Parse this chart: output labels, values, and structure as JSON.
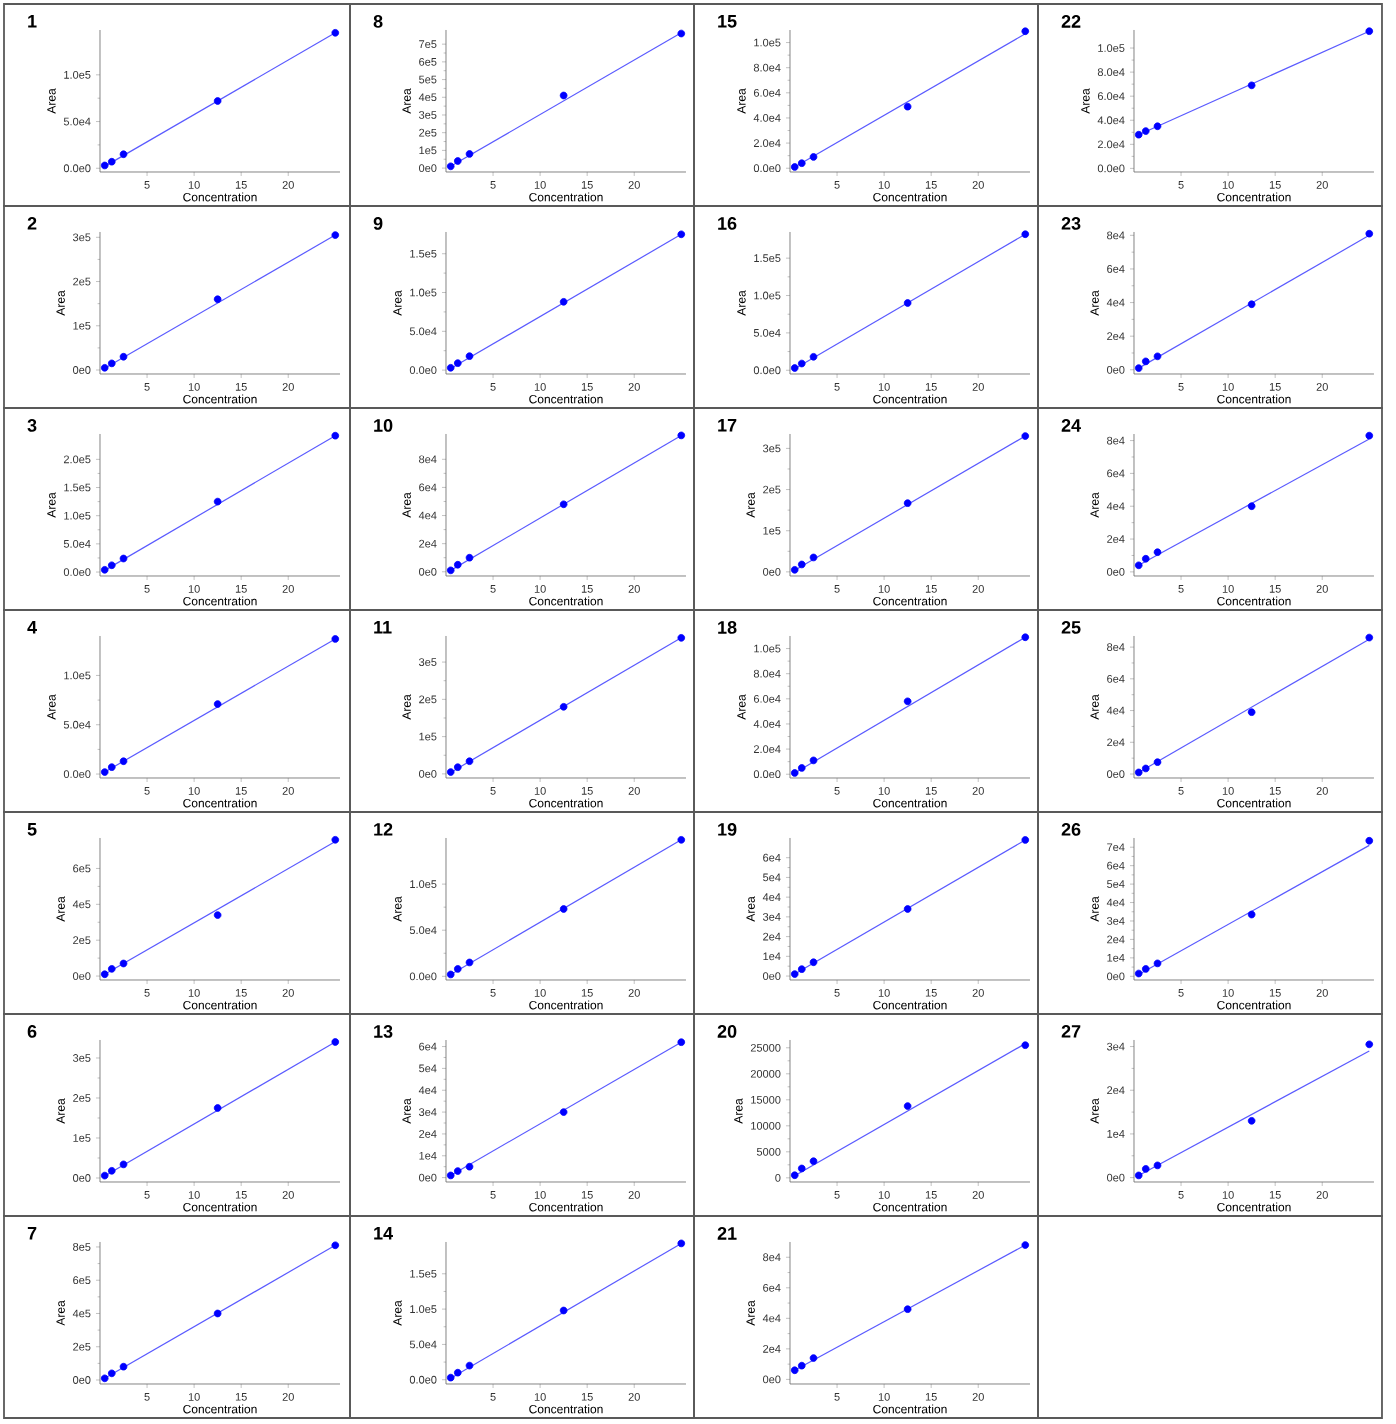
{
  "chart_data": [
    {
      "type": "scatter",
      "title": "1",
      "xlabel": "Concentration",
      "ylabel": "Area",
      "xlim": [
        0,
        25.5
      ],
      "xticks": [
        5,
        10,
        15,
        20
      ],
      "ylim": [
        -4000,
        148000
      ],
      "yticks": [
        {
          "value": 0,
          "label": "0.0e0"
        },
        {
          "value": 50000,
          "label": "5.0e4"
        },
        {
          "value": 100000,
          "label": "1.0e5"
        }
      ],
      "marker": "circle",
      "series": [
        {
          "color": "#0000ff",
          "x": [
            0.5,
            1.25,
            2.5,
            12.5,
            25
          ],
          "values": [
            3000,
            7000,
            15000,
            72000,
            145000
          ]
        },
        {
          "type": "line",
          "marker": "none",
          "color": "#5a5aff",
          "x": [
            0.5,
            25
          ],
          "values": [
            2000,
            145000
          ]
        }
      ]
    },
    {
      "type": "scatter",
      "title": "2",
      "xlabel": "Concentration",
      "ylabel": "Area",
      "xlim": [
        0,
        25.5
      ],
      "xticks": [
        5,
        10,
        15,
        20
      ],
      "ylim": [
        -9000,
        312000
      ],
      "yticks": [
        {
          "value": 0,
          "label": "0e0"
        },
        {
          "value": 100000,
          "label": "1e5"
        },
        {
          "value": 200000,
          "label": "2e5"
        },
        {
          "value": 300000,
          "label": "3e5"
        }
      ],
      "marker": "circle",
      "series": [
        {
          "color": "#0000ff",
          "x": [
            0.5,
            1.25,
            2.5,
            12.5,
            25
          ],
          "values": [
            5000,
            15000,
            30000,
            160000,
            305000
          ]
        },
        {
          "type": "line",
          "marker": "none",
          "color": "#5a5aff",
          "x": [
            0.5,
            25
          ],
          "values": [
            4000,
            305000
          ]
        }
      ]
    },
    {
      "type": "scatter",
      "title": "3",
      "xlabel": "Concentration",
      "ylabel": "Area",
      "xlim": [
        0,
        25.5
      ],
      "xticks": [
        5,
        10,
        15,
        20
      ],
      "ylim": [
        -7000,
        245000
      ],
      "yticks": [
        {
          "value": 0,
          "label": "0.0e0"
        },
        {
          "value": 50000,
          "label": "5.0e4"
        },
        {
          "value": 100000,
          "label": "1.0e5"
        },
        {
          "value": 150000,
          "label": "1.5e5"
        },
        {
          "value": 200000,
          "label": "2.0e5"
        }
      ],
      "marker": "circle",
      "series": [
        {
          "color": "#0000ff",
          "x": [
            0.5,
            1.25,
            2.5,
            12.5,
            25
          ],
          "values": [
            4000,
            12000,
            24000,
            125000,
            242000
          ]
        },
        {
          "type": "line",
          "marker": "none",
          "color": "#5a5aff",
          "x": [
            0.5,
            25
          ],
          "values": [
            3000,
            242000
          ]
        }
      ]
    },
    {
      "type": "scatter",
      "title": "4",
      "xlabel": "Concentration",
      "ylabel": "Area",
      "xlim": [
        0,
        25.5
      ],
      "xticks": [
        5,
        10,
        15,
        20
      ],
      "ylim": [
        -4000,
        140000
      ],
      "yticks": [
        {
          "value": 0,
          "label": "0.0e0"
        },
        {
          "value": 50000,
          "label": "5.0e4"
        },
        {
          "value": 100000,
          "label": "1.0e5"
        }
      ],
      "marker": "circle",
      "series": [
        {
          "color": "#0000ff",
          "x": [
            0.5,
            1.25,
            2.5,
            12.5,
            25
          ],
          "values": [
            2000,
            7000,
            13000,
            71000,
            137000
          ]
        },
        {
          "type": "line",
          "marker": "none",
          "color": "#5a5aff",
          "x": [
            0.5,
            25
          ],
          "values": [
            2000,
            137000
          ]
        }
      ]
    },
    {
      "type": "scatter",
      "title": "5",
      "xlabel": "Concentration",
      "ylabel": "Area",
      "xlim": [
        0,
        25.5
      ],
      "xticks": [
        5,
        10,
        15,
        20
      ],
      "ylim": [
        -22000,
        770000
      ],
      "yticks": [
        {
          "value": 0,
          "label": "0e0"
        },
        {
          "value": 200000,
          "label": "2e5"
        },
        {
          "value": 400000,
          "label": "4e5"
        },
        {
          "value": 600000,
          "label": "6e5"
        }
      ],
      "marker": "circle",
      "series": [
        {
          "color": "#0000ff",
          "x": [
            0.5,
            1.25,
            2.5,
            12.5,
            25
          ],
          "values": [
            10000,
            40000,
            70000,
            340000,
            760000
          ]
        },
        {
          "type": "line",
          "marker": "none",
          "color": "#5a5aff",
          "x": [
            0.5,
            25
          ],
          "values": [
            10000,
            750000
          ]
        }
      ]
    },
    {
      "type": "scatter",
      "title": "6",
      "xlabel": "Concentration",
      "ylabel": "Area",
      "xlim": [
        0,
        25.5
      ],
      "xticks": [
        5,
        10,
        15,
        20
      ],
      "ylim": [
        -10000,
        345000
      ],
      "yticks": [
        {
          "value": 0,
          "label": "0e0"
        },
        {
          "value": 100000,
          "label": "1e5"
        },
        {
          "value": 200000,
          "label": "2e5"
        },
        {
          "value": 300000,
          "label": "3e5"
        }
      ],
      "marker": "circle",
      "series": [
        {
          "color": "#0000ff",
          "x": [
            0.5,
            1.25,
            2.5,
            12.5,
            25
          ],
          "values": [
            6000,
            18000,
            34000,
            175000,
            340000
          ]
        },
        {
          "type": "line",
          "marker": "none",
          "color": "#5a5aff",
          "x": [
            0.5,
            25
          ],
          "values": [
            5000,
            340000
          ]
        }
      ]
    },
    {
      "type": "scatter",
      "title": "7",
      "xlabel": "Concentration",
      "ylabel": "Area",
      "xlim": [
        0,
        25.5
      ],
      "xticks": [
        5,
        10,
        15,
        20
      ],
      "ylim": [
        -24000,
        830000
      ],
      "yticks": [
        {
          "value": 0,
          "label": "0e0"
        },
        {
          "value": 200000,
          "label": "2e5"
        },
        {
          "value": 400000,
          "label": "4e5"
        },
        {
          "value": 600000,
          "label": "6e5"
        },
        {
          "value": 800000,
          "label": "8e5"
        }
      ],
      "marker": "circle",
      "series": [
        {
          "color": "#0000ff",
          "x": [
            0.5,
            1.25,
            2.5,
            12.5,
            25
          ],
          "values": [
            10000,
            40000,
            80000,
            400000,
            810000
          ]
        },
        {
          "type": "line",
          "marker": "none",
          "color": "#5a5aff",
          "x": [
            0.5,
            25
          ],
          "values": [
            10000,
            810000
          ]
        }
      ]
    },
    {
      "type": "scatter",
      "title": "8",
      "xlabel": "Concentration",
      "ylabel": "Area",
      "xlim": [
        0,
        25.5
      ],
      "xticks": [
        5,
        10,
        15,
        20
      ],
      "ylim": [
        -22000,
        780000
      ],
      "yticks": [
        {
          "value": 0,
          "label": "0e0"
        },
        {
          "value": 100000,
          "label": "1e5"
        },
        {
          "value": 200000,
          "label": "2e5"
        },
        {
          "value": 300000,
          "label": "3e5"
        },
        {
          "value": 400000,
          "label": "4e5"
        },
        {
          "value": 500000,
          "label": "5e5"
        },
        {
          "value": 600000,
          "label": "6e5"
        },
        {
          "value": 700000,
          "label": "7e5"
        }
      ],
      "marker": "circle",
      "series": [
        {
          "color": "#0000ff",
          "x": [
            0.5,
            1.25,
            2.5,
            12.5,
            25
          ],
          "values": [
            10000,
            40000,
            80000,
            410000,
            760000
          ]
        },
        {
          "type": "line",
          "marker": "none",
          "color": "#5a5aff",
          "x": [
            0.5,
            25
          ],
          "values": [
            10000,
            765000
          ]
        }
      ]
    },
    {
      "type": "scatter",
      "title": "9",
      "xlabel": "Concentration",
      "ylabel": "Area",
      "xlim": [
        0,
        25.5
      ],
      "xticks": [
        5,
        10,
        15,
        20
      ],
      "ylim": [
        -5000,
        178000
      ],
      "yticks": [
        {
          "value": 0,
          "label": "0.0e0"
        },
        {
          "value": 50000,
          "label": "5.0e4"
        },
        {
          "value": 100000,
          "label": "1.0e5"
        },
        {
          "value": 150000,
          "label": "1.5e5"
        }
      ],
      "marker": "circle",
      "series": [
        {
          "color": "#0000ff",
          "x": [
            0.5,
            1.25,
            2.5,
            12.5,
            25
          ],
          "values": [
            3000,
            9000,
            18000,
            88000,
            175000
          ]
        },
        {
          "type": "line",
          "marker": "none",
          "color": "#5a5aff",
          "x": [
            0.5,
            25
          ],
          "values": [
            2000,
            175000
          ]
        }
      ]
    },
    {
      "type": "scatter",
      "title": "10",
      "xlabel": "Concentration",
      "ylabel": "Area",
      "xlim": [
        0,
        25.5
      ],
      "xticks": [
        5,
        10,
        15,
        20
      ],
      "ylim": [
        -3000,
        98000
      ],
      "yticks": [
        {
          "value": 0,
          "label": "0e0"
        },
        {
          "value": 20000,
          "label": "2e4"
        },
        {
          "value": 40000,
          "label": "4e4"
        },
        {
          "value": 60000,
          "label": "6e4"
        },
        {
          "value": 80000,
          "label": "8e4"
        }
      ],
      "marker": "circle",
      "series": [
        {
          "color": "#0000ff",
          "x": [
            0.5,
            1.25,
            2.5,
            12.5,
            25
          ],
          "values": [
            1000,
            5000,
            10000,
            48000,
            97000
          ]
        },
        {
          "type": "line",
          "marker": "none",
          "color": "#5a5aff",
          "x": [
            0.5,
            25
          ],
          "values": [
            1000,
            97000
          ]
        }
      ]
    },
    {
      "type": "scatter",
      "title": "11",
      "xlabel": "Concentration",
      "ylabel": "Area",
      "xlim": [
        0,
        25.5
      ],
      "xticks": [
        5,
        10,
        15,
        20
      ],
      "ylim": [
        -11000,
        370000
      ],
      "yticks": [
        {
          "value": 0,
          "label": "0e0"
        },
        {
          "value": 100000,
          "label": "1e5"
        },
        {
          "value": 200000,
          "label": "2e5"
        },
        {
          "value": 300000,
          "label": "3e5"
        }
      ],
      "marker": "circle",
      "series": [
        {
          "color": "#0000ff",
          "x": [
            0.5,
            1.25,
            2.5,
            12.5,
            25
          ],
          "values": [
            5000,
            18000,
            34000,
            180000,
            365000
          ]
        },
        {
          "type": "line",
          "marker": "none",
          "color": "#5a5aff",
          "x": [
            0.5,
            25
          ],
          "values": [
            4000,
            365000
          ]
        }
      ]
    },
    {
      "type": "scatter",
      "title": "12",
      "xlabel": "Concentration",
      "ylabel": "Area",
      "xlim": [
        0,
        25.5
      ],
      "xticks": [
        5,
        10,
        15,
        20
      ],
      "ylim": [
        -4000,
        150000
      ],
      "yticks": [
        {
          "value": 0,
          "label": "0.0e0"
        },
        {
          "value": 50000,
          "label": "5.0e4"
        },
        {
          "value": 100000,
          "label": "1.0e5"
        }
      ],
      "marker": "circle",
      "series": [
        {
          "color": "#0000ff",
          "x": [
            0.5,
            1.25,
            2.5,
            12.5,
            25
          ],
          "values": [
            2000,
            8000,
            15000,
            73000,
            148000
          ]
        },
        {
          "type": "line",
          "marker": "none",
          "color": "#5a5aff",
          "x": [
            0.5,
            25
          ],
          "values": [
            2000,
            148000
          ]
        }
      ]
    },
    {
      "type": "scatter",
      "title": "13",
      "xlabel": "Concentration",
      "ylabel": "Area",
      "xlim": [
        0,
        25.5
      ],
      "xticks": [
        5,
        10,
        15,
        20
      ],
      "ylim": [
        -2000,
        63000
      ],
      "yticks": [
        {
          "value": 0,
          "label": "0e0"
        },
        {
          "value": 10000,
          "label": "1e4"
        },
        {
          "value": 20000,
          "label": "2e4"
        },
        {
          "value": 30000,
          "label": "3e4"
        },
        {
          "value": 40000,
          "label": "4e4"
        },
        {
          "value": 50000,
          "label": "5e4"
        },
        {
          "value": 60000,
          "label": "6e4"
        }
      ],
      "marker": "circle",
      "series": [
        {
          "color": "#0000ff",
          "x": [
            0.5,
            1.25,
            2.5,
            12.5,
            25
          ],
          "values": [
            1000,
            3000,
            5000,
            30000,
            62000
          ]
        },
        {
          "type": "line",
          "marker": "none",
          "color": "#5a5aff",
          "x": [
            0.5,
            25
          ],
          "values": [
            1000,
            62000
          ]
        }
      ]
    },
    {
      "type": "scatter",
      "title": "14",
      "xlabel": "Concentration",
      "ylabel": "Area",
      "xlim": [
        0,
        25.5
      ],
      "xticks": [
        5,
        10,
        15,
        20
      ],
      "ylim": [
        -6000,
        195000
      ],
      "yticks": [
        {
          "value": 0,
          "label": "0.0e0"
        },
        {
          "value": 50000,
          "label": "5.0e4"
        },
        {
          "value": 100000,
          "label": "1.0e5"
        },
        {
          "value": 150000,
          "label": "1.5e5"
        }
      ],
      "marker": "circle",
      "series": [
        {
          "color": "#0000ff",
          "x": [
            0.5,
            1.25,
            2.5,
            12.5,
            25
          ],
          "values": [
            3000,
            10000,
            20000,
            98000,
            193000
          ]
        },
        {
          "type": "line",
          "marker": "none",
          "color": "#5a5aff",
          "x": [
            0.5,
            25
          ],
          "values": [
            2000,
            193000
          ]
        }
      ]
    },
    {
      "type": "scatter",
      "title": "15",
      "xlabel": "Concentration",
      "ylabel": "Area",
      "xlim": [
        0,
        25.5
      ],
      "xticks": [
        5,
        10,
        15,
        20
      ],
      "ylim": [
        -3000,
        110000
      ],
      "yticks": [
        {
          "value": 0,
          "label": "0.0e0"
        },
        {
          "value": 20000,
          "label": "2.0e4"
        },
        {
          "value": 40000,
          "label": "4.0e4"
        },
        {
          "value": 60000,
          "label": "6.0e4"
        },
        {
          "value": 80000,
          "label": "8.0e4"
        },
        {
          "value": 100000,
          "label": "1.0e5"
        }
      ],
      "marker": "circle",
      "series": [
        {
          "color": "#0000ff",
          "x": [
            0.5,
            1.25,
            2.5,
            12.5,
            25
          ],
          "values": [
            1000,
            4000,
            9000,
            49000,
            109000
          ]
        },
        {
          "type": "line",
          "marker": "none",
          "color": "#5a5aff",
          "x": [
            0.5,
            25
          ],
          "values": [
            1000,
            107000
          ]
        }
      ]
    },
    {
      "type": "scatter",
      "title": "16",
      "xlabel": "Concentration",
      "ylabel": "Area",
      "xlim": [
        0,
        25.5
      ],
      "xticks": [
        5,
        10,
        15,
        20
      ],
      "ylim": [
        -5000,
        185000
      ],
      "yticks": [
        {
          "value": 0,
          "label": "0.0e0"
        },
        {
          "value": 50000,
          "label": "5.0e4"
        },
        {
          "value": 100000,
          "label": "1.0e5"
        },
        {
          "value": 150000,
          "label": "1.5e5"
        }
      ],
      "marker": "circle",
      "series": [
        {
          "color": "#0000ff",
          "x": [
            0.5,
            1.25,
            2.5,
            12.5,
            25
          ],
          "values": [
            3000,
            9000,
            18000,
            90000,
            182000
          ]
        },
        {
          "type": "line",
          "marker": "none",
          "color": "#5a5aff",
          "x": [
            0.5,
            25
          ],
          "values": [
            2000,
            182000
          ]
        }
      ]
    },
    {
      "type": "scatter",
      "title": "17",
      "xlabel": "Concentration",
      "ylabel": "Area",
      "xlim": [
        0,
        25.5
      ],
      "xticks": [
        5,
        10,
        15,
        20
      ],
      "ylim": [
        -10000,
        335000
      ],
      "yticks": [
        {
          "value": 0,
          "label": "0e0"
        },
        {
          "value": 100000,
          "label": "1e5"
        },
        {
          "value": 200000,
          "label": "2e5"
        },
        {
          "value": 300000,
          "label": "3e5"
        }
      ],
      "marker": "circle",
      "series": [
        {
          "color": "#0000ff",
          "x": [
            0.5,
            1.25,
            2.5,
            12.5,
            25
          ],
          "values": [
            5000,
            18000,
            35000,
            167000,
            330000
          ]
        },
        {
          "type": "line",
          "marker": "none",
          "color": "#5a5aff",
          "x": [
            0.5,
            25
          ],
          "values": [
            4000,
            330000
          ]
        }
      ]
    },
    {
      "type": "scatter",
      "title": "18",
      "xlabel": "Concentration",
      "ylabel": "Area",
      "xlim": [
        0,
        25.5
      ],
      "xticks": [
        5,
        10,
        15,
        20
      ],
      "ylim": [
        -3000,
        110000
      ],
      "yticks": [
        {
          "value": 0,
          "label": "0.0e0"
        },
        {
          "value": 20000,
          "label": "2.0e4"
        },
        {
          "value": 40000,
          "label": "4.0e4"
        },
        {
          "value": 60000,
          "label": "6.0e4"
        },
        {
          "value": 80000,
          "label": "8.0e4"
        },
        {
          "value": 100000,
          "label": "1.0e5"
        }
      ],
      "marker": "circle",
      "series": [
        {
          "color": "#0000ff",
          "x": [
            0.5,
            1.25,
            2.5,
            12.5,
            25
          ],
          "values": [
            1000,
            5000,
            11000,
            58000,
            109000
          ]
        },
        {
          "type": "line",
          "marker": "none",
          "color": "#5a5aff",
          "x": [
            0.5,
            25
          ],
          "values": [
            1000,
            109000
          ]
        }
      ]
    },
    {
      "type": "scatter",
      "title": "19",
      "xlabel": "Concentration",
      "ylabel": "Area",
      "xlim": [
        0,
        25.5
      ],
      "xticks": [
        5,
        10,
        15,
        20
      ],
      "ylim": [
        -2000,
        70000
      ],
      "yticks": [
        {
          "value": 0,
          "label": "0e0"
        },
        {
          "value": 10000,
          "label": "1e4"
        },
        {
          "value": 20000,
          "label": "2e4"
        },
        {
          "value": 30000,
          "label": "3e4"
        },
        {
          "value": 40000,
          "label": "4e4"
        },
        {
          "value": 50000,
          "label": "5e4"
        },
        {
          "value": 60000,
          "label": "6e4"
        }
      ],
      "marker": "circle",
      "series": [
        {
          "color": "#0000ff",
          "x": [
            0.5,
            1.25,
            2.5,
            12.5,
            25
          ],
          "values": [
            1000,
            3500,
            7000,
            34000,
            69000
          ]
        },
        {
          "type": "line",
          "marker": "none",
          "color": "#5a5aff",
          "x": [
            0.5,
            25
          ],
          "values": [
            1000,
            69000
          ]
        }
      ]
    },
    {
      "type": "scatter",
      "title": "20",
      "xlabel": "Concentration",
      "ylabel": "Area",
      "xlim": [
        0,
        25.5
      ],
      "xticks": [
        5,
        10,
        15,
        20
      ],
      "ylim": [
        -800,
        26500
      ],
      "yticks": [
        0,
        5000,
        10000,
        15000,
        20000,
        25000
      ],
      "marker": "circle",
      "series": [
        {
          "color": "#0000ff",
          "x": [
            0.5,
            1.25,
            2.5,
            12.5,
            25
          ],
          "values": [
            500,
            1800,
            3200,
            13800,
            25500
          ]
        },
        {
          "type": "line",
          "marker": "none",
          "color": "#5a5aff",
          "x": [
            0.5,
            25
          ],
          "values": [
            400,
            25800
          ]
        }
      ]
    },
    {
      "type": "scatter",
      "title": "21",
      "xlabel": "Concentration",
      "ylabel": "Area",
      "xlim": [
        0,
        25.5
      ],
      "xticks": [
        5,
        10,
        15,
        20
      ],
      "ylim": [
        -3000,
        90000
      ],
      "yticks": [
        {
          "value": 0,
          "label": "0e0"
        },
        {
          "value": 20000,
          "label": "2e4"
        },
        {
          "value": 40000,
          "label": "4e4"
        },
        {
          "value": 60000,
          "label": "6e4"
        },
        {
          "value": 80000,
          "label": "8e4"
        }
      ],
      "marker": "circle",
      "series": [
        {
          "color": "#0000ff",
          "x": [
            0.5,
            1.25,
            2.5,
            12.5,
            25
          ],
          "values": [
            6000,
            9000,
            14000,
            46000,
            88000
          ]
        },
        {
          "type": "line",
          "marker": "none",
          "color": "#5a5aff",
          "x": [
            0.5,
            25
          ],
          "values": [
            6000,
            88000
          ]
        }
      ]
    },
    {
      "type": "scatter",
      "title": "22",
      "xlabel": "Concentration",
      "ylabel": "Area",
      "xlim": [
        0,
        25.5
      ],
      "xticks": [
        5,
        10,
        15,
        20
      ],
      "ylim": [
        -3000,
        115000
      ],
      "yticks": [
        {
          "value": 0,
          "label": "0.0e0"
        },
        {
          "value": 20000,
          "label": "2.0e4"
        },
        {
          "value": 40000,
          "label": "4.0e4"
        },
        {
          "value": 60000,
          "label": "6.0e4"
        },
        {
          "value": 80000,
          "label": "8.0e4"
        },
        {
          "value": 100000,
          "label": "1.0e5"
        }
      ],
      "marker": "circle",
      "series": [
        {
          "color": "#0000ff",
          "x": [
            0.5,
            1.25,
            2.5,
            12.5,
            25
          ],
          "values": [
            28000,
            31000,
            35000,
            69000,
            114000
          ]
        },
        {
          "type": "line",
          "marker": "none",
          "color": "#5a5aff",
          "x": [
            0.5,
            25
          ],
          "values": [
            28000,
            114000
          ]
        }
      ]
    },
    {
      "type": "scatter",
      "title": "23",
      "xlabel": "Concentration",
      "ylabel": "Area",
      "xlim": [
        0,
        25.5
      ],
      "xticks": [
        5,
        10,
        15,
        20
      ],
      "ylim": [
        -2500,
        82000
      ],
      "yticks": [
        {
          "value": 0,
          "label": "0e0"
        },
        {
          "value": 20000,
          "label": "2e4"
        },
        {
          "value": 40000,
          "label": "4e4"
        },
        {
          "value": 60000,
          "label": "6e4"
        },
        {
          "value": 80000,
          "label": "8e4"
        }
      ],
      "marker": "circle",
      "series": [
        {
          "color": "#0000ff",
          "x": [
            0.5,
            1.25,
            2.5,
            12.5,
            25
          ],
          "values": [
            1000,
            5000,
            8000,
            39000,
            81000
          ]
        },
        {
          "type": "line",
          "marker": "none",
          "color": "#5a5aff",
          "x": [
            0.5,
            25
          ],
          "values": [
            1000,
            80000
          ]
        }
      ]
    },
    {
      "type": "scatter",
      "title": "24",
      "xlabel": "Concentration",
      "ylabel": "Area",
      "xlim": [
        0,
        25.5
      ],
      "xticks": [
        5,
        10,
        15,
        20
      ],
      "ylim": [
        -2500,
        84000
      ],
      "yticks": [
        {
          "value": 0,
          "label": "0e0"
        },
        {
          "value": 20000,
          "label": "2e4"
        },
        {
          "value": 40000,
          "label": "4e4"
        },
        {
          "value": 60000,
          "label": "6e4"
        },
        {
          "value": 80000,
          "label": "8e4"
        }
      ],
      "marker": "circle",
      "series": [
        {
          "color": "#0000ff",
          "x": [
            0.5,
            1.25,
            2.5,
            12.5,
            25
          ],
          "values": [
            4000,
            8000,
            12000,
            40000,
            83000
          ]
        },
        {
          "type": "line",
          "marker": "none",
          "color": "#5a5aff",
          "x": [
            0.5,
            25
          ],
          "values": [
            4000,
            81000
          ]
        }
      ]
    },
    {
      "type": "scatter",
      "title": "25",
      "xlabel": "Concentration",
      "ylabel": "Area",
      "xlim": [
        0,
        25.5
      ],
      "xticks": [
        5,
        10,
        15,
        20
      ],
      "ylim": [
        -2500,
        87000
      ],
      "yticks": [
        {
          "value": 0,
          "label": "0e0"
        },
        {
          "value": 20000,
          "label": "2e4"
        },
        {
          "value": 40000,
          "label": "4e4"
        },
        {
          "value": 60000,
          "label": "6e4"
        },
        {
          "value": 80000,
          "label": "8e4"
        }
      ],
      "marker": "circle",
      "series": [
        {
          "color": "#0000ff",
          "x": [
            0.5,
            1.25,
            2.5,
            12.5,
            25
          ],
          "values": [
            1000,
            3500,
            7500,
            39000,
            86000
          ]
        },
        {
          "type": "line",
          "marker": "none",
          "color": "#5a5aff",
          "x": [
            0.5,
            25
          ],
          "values": [
            1000,
            85000
          ]
        }
      ]
    },
    {
      "type": "scatter",
      "title": "26",
      "xlabel": "Concentration",
      "ylabel": "Area",
      "xlim": [
        0,
        25.5
      ],
      "xticks": [
        5,
        10,
        15,
        20
      ],
      "ylim": [
        -2000,
        75000
      ],
      "yticks": [
        {
          "value": 0,
          "label": "0e0"
        },
        {
          "value": 10000,
          "label": "1e4"
        },
        {
          "value": 20000,
          "label": "2e4"
        },
        {
          "value": 30000,
          "label": "3e4"
        },
        {
          "value": 40000,
          "label": "4e4"
        },
        {
          "value": 50000,
          "label": "5e4"
        },
        {
          "value": 60000,
          "label": "6e4"
        },
        {
          "value": 70000,
          "label": "7e4"
        }
      ],
      "marker": "circle",
      "series": [
        {
          "color": "#0000ff",
          "x": [
            0.5,
            1.25,
            2.5,
            12.5,
            25
          ],
          "values": [
            1500,
            4000,
            7000,
            33500,
            73500
          ]
        },
        {
          "type": "line",
          "marker": "none",
          "color": "#5a5aff",
          "x": [
            0.5,
            25
          ],
          "values": [
            1000,
            71000
          ]
        }
      ]
    },
    {
      "type": "scatter",
      "title": "27",
      "xlabel": "Concentration",
      "ylabel": "Area",
      "xlim": [
        0,
        25.5
      ],
      "xticks": [
        5,
        10,
        15,
        20
      ],
      "ylim": [
        -1000,
        31500
      ],
      "yticks": [
        {
          "value": 0,
          "label": "0e0"
        },
        {
          "value": 10000,
          "label": "1e4"
        },
        {
          "value": 20000,
          "label": "2e4"
        },
        {
          "value": 30000,
          "label": "3e4"
        }
      ],
      "marker": "circle",
      "series": [
        {
          "color": "#0000ff",
          "x": [
            0.5,
            1.25,
            2.5,
            12.5,
            25
          ],
          "values": [
            500,
            2000,
            2800,
            13000,
            30500
          ]
        },
        {
          "type": "line",
          "marker": "none",
          "color": "#5a5aff",
          "x": [
            0.5,
            25
          ],
          "values": [
            500,
            29000
          ]
        }
      ]
    }
  ]
}
